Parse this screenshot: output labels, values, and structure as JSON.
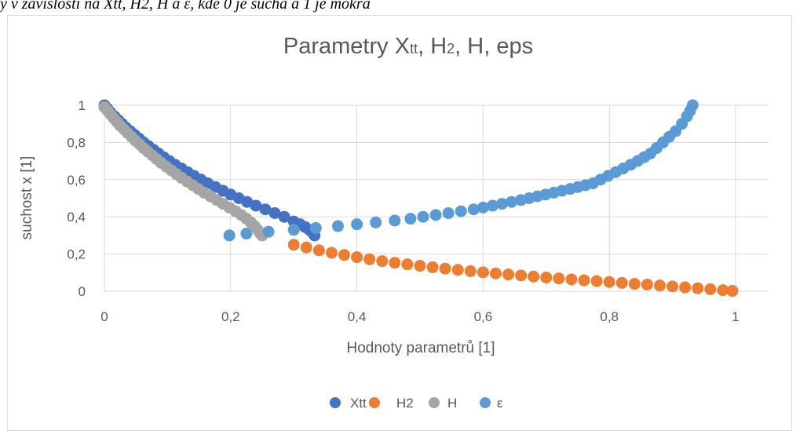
{
  "page": {
    "top_caption": "y v závislosti na Xtt, H2, H a ε, kde 0 je suchá a 1 je mokrá"
  },
  "colors": {
    "Xtt": "#4472c4",
    "H2": "#ed7d31",
    "H": "#a5a5a5",
    "eps": "#5b9bd5",
    "gridline": "#d9d9d9",
    "text": "#595959"
  },
  "chart_data": {
    "type": "scatter",
    "title": {
      "main": "Parametry X",
      "sub1": "tt",
      "mid": ", H",
      "sub2": "2",
      "rest": ", H, eps"
    },
    "xlabel": "Hodnoty parametrů [1]",
    "ylabel": "suchost x [1]",
    "xlim": [
      0,
      1
    ],
    "ylim": [
      0,
      1
    ],
    "x_ticks": [
      "0",
      "0,2",
      "0,4",
      "0,6",
      "0,8",
      "1"
    ],
    "y_ticks": [
      "0",
      "0,2",
      "0,4",
      "0,6",
      "0,8",
      "1"
    ],
    "grid": "vertical-and-horizontal",
    "legend_position": "bottom",
    "legend": [
      "Xtt",
      "H2",
      "H",
      "ε"
    ],
    "series": [
      {
        "name": "Xtt",
        "color": "#4472c4",
        "points": [
          [
            0.0,
            1.0
          ],
          [
            0.005,
            0.98
          ],
          [
            0.01,
            0.96
          ],
          [
            0.016,
            0.94
          ],
          [
            0.022,
            0.92
          ],
          [
            0.028,
            0.9
          ],
          [
            0.034,
            0.88
          ],
          [
            0.041,
            0.86
          ],
          [
            0.048,
            0.84
          ],
          [
            0.055,
            0.82
          ],
          [
            0.062,
            0.8
          ],
          [
            0.07,
            0.78
          ],
          [
            0.078,
            0.76
          ],
          [
            0.086,
            0.74
          ],
          [
            0.094,
            0.72
          ],
          [
            0.103,
            0.7
          ],
          [
            0.112,
            0.68
          ],
          [
            0.122,
            0.66
          ],
          [
            0.132,
            0.64
          ],
          [
            0.142,
            0.62
          ],
          [
            0.153,
            0.6
          ],
          [
            0.164,
            0.58
          ],
          [
            0.176,
            0.56
          ],
          [
            0.188,
            0.54
          ],
          [
            0.2,
            0.52
          ],
          [
            0.213,
            0.5
          ],
          [
            0.226,
            0.48
          ],
          [
            0.24,
            0.46
          ],
          [
            0.255,
            0.44
          ],
          [
            0.27,
            0.42
          ],
          [
            0.285,
            0.4
          ],
          [
            0.3,
            0.375
          ],
          [
            0.31,
            0.36
          ],
          [
            0.318,
            0.345
          ],
          [
            0.325,
            0.33
          ],
          [
            0.33,
            0.315
          ],
          [
            0.333,
            0.3
          ]
        ]
      },
      {
        "name": "H2",
        "color": "#ed7d31",
        "points": [
          [
            0.3,
            0.25
          ],
          [
            0.32,
            0.235
          ],
          [
            0.34,
            0.22
          ],
          [
            0.36,
            0.207
          ],
          [
            0.38,
            0.195
          ],
          [
            0.4,
            0.183
          ],
          [
            0.42,
            0.172
          ],
          [
            0.44,
            0.162
          ],
          [
            0.46,
            0.153
          ],
          [
            0.48,
            0.145
          ],
          [
            0.5,
            0.137
          ],
          [
            0.52,
            0.129
          ],
          [
            0.54,
            0.122
          ],
          [
            0.56,
            0.115
          ],
          [
            0.58,
            0.108
          ],
          [
            0.6,
            0.102
          ],
          [
            0.62,
            0.096
          ],
          [
            0.64,
            0.09
          ],
          [
            0.66,
            0.085
          ],
          [
            0.68,
            0.079
          ],
          [
            0.7,
            0.074
          ],
          [
            0.72,
            0.069
          ],
          [
            0.74,
            0.064
          ],
          [
            0.76,
            0.059
          ],
          [
            0.78,
            0.055
          ],
          [
            0.8,
            0.05
          ],
          [
            0.82,
            0.045
          ],
          [
            0.84,
            0.04
          ],
          [
            0.86,
            0.036
          ],
          [
            0.88,
            0.031
          ],
          [
            0.9,
            0.026
          ],
          [
            0.92,
            0.021
          ],
          [
            0.94,
            0.016
          ],
          [
            0.96,
            0.011
          ],
          [
            0.98,
            0.006
          ],
          [
            0.995,
            0.002
          ]
        ]
      },
      {
        "name": "H",
        "color": "#a5a5a5",
        "points": [
          [
            0.0,
            0.99
          ],
          [
            0.005,
            0.97
          ],
          [
            0.01,
            0.95
          ],
          [
            0.015,
            0.93
          ],
          [
            0.02,
            0.91
          ],
          [
            0.025,
            0.89
          ],
          [
            0.031,
            0.87
          ],
          [
            0.037,
            0.85
          ],
          [
            0.043,
            0.83
          ],
          [
            0.049,
            0.81
          ],
          [
            0.056,
            0.79
          ],
          [
            0.062,
            0.77
          ],
          [
            0.069,
            0.75
          ],
          [
            0.076,
            0.73
          ],
          [
            0.083,
            0.71
          ],
          [
            0.09,
            0.69
          ],
          [
            0.098,
            0.67
          ],
          [
            0.106,
            0.65
          ],
          [
            0.114,
            0.63
          ],
          [
            0.122,
            0.61
          ],
          [
            0.131,
            0.59
          ],
          [
            0.14,
            0.57
          ],
          [
            0.149,
            0.55
          ],
          [
            0.158,
            0.53
          ],
          [
            0.168,
            0.51
          ],
          [
            0.178,
            0.49
          ],
          [
            0.188,
            0.47
          ],
          [
            0.198,
            0.45
          ],
          [
            0.208,
            0.43
          ],
          [
            0.217,
            0.41
          ],
          [
            0.225,
            0.39
          ],
          [
            0.232,
            0.37
          ],
          [
            0.238,
            0.35
          ],
          [
            0.243,
            0.33
          ],
          [
            0.247,
            0.31
          ],
          [
            0.25,
            0.3
          ]
        ]
      },
      {
        "name": "ε",
        "color": "#5b9bd5",
        "points": [
          [
            0.198,
            0.3
          ],
          [
            0.225,
            0.31
          ],
          [
            0.26,
            0.32
          ],
          [
            0.3,
            0.33
          ],
          [
            0.335,
            0.34
          ],
          [
            0.37,
            0.35
          ],
          [
            0.4,
            0.36
          ],
          [
            0.43,
            0.37
          ],
          [
            0.46,
            0.38
          ],
          [
            0.485,
            0.39
          ],
          [
            0.505,
            0.4
          ],
          [
            0.525,
            0.41
          ],
          [
            0.545,
            0.42
          ],
          [
            0.565,
            0.43
          ],
          [
            0.585,
            0.44
          ],
          [
            0.6,
            0.45
          ],
          [
            0.615,
            0.46
          ],
          [
            0.63,
            0.47
          ],
          [
            0.645,
            0.48
          ],
          [
            0.66,
            0.49
          ],
          [
            0.673,
            0.5
          ],
          [
            0.686,
            0.51
          ],
          [
            0.699,
            0.52
          ],
          [
            0.712,
            0.53
          ],
          [
            0.725,
            0.54
          ],
          [
            0.738,
            0.55
          ],
          [
            0.75,
            0.56
          ],
          [
            0.762,
            0.57
          ],
          [
            0.774,
            0.58
          ],
          [
            0.786,
            0.6
          ],
          [
            0.798,
            0.62
          ],
          [
            0.81,
            0.64
          ],
          [
            0.822,
            0.66
          ],
          [
            0.834,
            0.68
          ],
          [
            0.845,
            0.7
          ],
          [
            0.855,
            0.72
          ],
          [
            0.865,
            0.74
          ],
          [
            0.875,
            0.77
          ],
          [
            0.885,
            0.8
          ],
          [
            0.895,
            0.83
          ],
          [
            0.905,
            0.86
          ],
          [
            0.915,
            0.9
          ],
          [
            0.923,
            0.94
          ],
          [
            0.928,
            0.97
          ],
          [
            0.932,
            1.0
          ]
        ]
      }
    ]
  }
}
